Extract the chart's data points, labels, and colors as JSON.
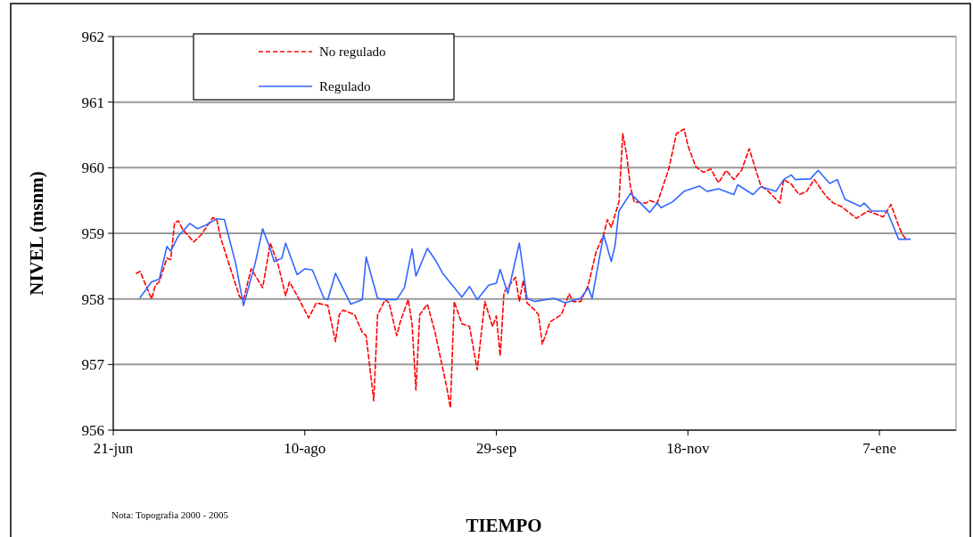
{
  "chart_data": {
    "type": "line",
    "xlabel": "TIEMPO",
    "ylabel": "NIVEL (msnm)",
    "annotations": [
      "Nota: Topografia 2000 - 2005"
    ],
    "xlim": [
      "2004-06-21",
      "2005-01-27"
    ],
    "xticks": [
      {
        "value": "2004-06-21",
        "label": "21-jun"
      },
      {
        "value": "2004-08-10",
        "label": "10-ago"
      },
      {
        "value": "2004-09-29",
        "label": "29-sep"
      },
      {
        "value": "2004-11-18",
        "label": "18-nov"
      },
      {
        "value": "2005-01-07",
        "label": "7-ene"
      }
    ],
    "ylim": [
      956,
      962
    ],
    "yticks": [
      956,
      957,
      958,
      959,
      960,
      961,
      962
    ],
    "grid": "y",
    "legend": "top left",
    "marker": "none",
    "series": [
      {
        "name": "No regulado",
        "color": "#ff0000",
        "line_style": "dashed",
        "x": [
          "2004-06-27",
          "2004-06-28",
          "2004-07-01",
          "2004-07-02",
          "2004-07-03",
          "2004-07-05",
          "2004-07-06",
          "2004-07-07",
          "2004-07-08",
          "2004-07-09",
          "2004-07-12",
          "2004-07-14",
          "2004-07-17",
          "2004-07-18",
          "2004-07-19",
          "2004-07-21",
          "2004-07-24",
          "2004-07-25",
          "2004-07-27",
          "2004-07-30",
          "2004-08-01",
          "2004-08-03",
          "2004-08-05",
          "2004-08-06",
          "2004-08-08",
          "2004-08-11",
          "2004-08-13",
          "2004-08-16",
          "2004-08-18",
          "2004-08-19",
          "2004-08-20",
          "2004-08-23",
          "2004-08-25",
          "2004-08-26",
          "2004-08-28",
          "2004-08-29",
          "2004-08-31",
          "2004-09-01",
          "2004-09-03",
          "2004-09-04",
          "2004-09-06",
          "2004-09-07",
          "2004-09-08",
          "2004-09-09",
          "2004-09-11",
          "2004-09-13",
          "2004-09-16",
          "2004-09-17",
          "2004-09-18",
          "2004-09-20",
          "2004-09-22",
          "2004-09-24",
          "2004-09-26",
          "2004-09-28",
          "2004-09-29",
          "2004-09-30",
          "2004-10-01",
          "2004-10-04",
          "2004-10-05",
          "2004-10-06",
          "2004-10-07",
          "2004-10-09",
          "2004-10-10",
          "2004-10-11",
          "2004-10-13",
          "2004-10-16",
          "2004-10-18",
          "2004-10-19",
          "2004-10-21",
          "2004-10-23",
          "2004-10-25",
          "2004-10-27",
          "2004-10-28",
          "2004-10-29",
          "2004-10-31",
          "2004-11-01",
          "2004-11-02",
          "2004-11-03",
          "2004-11-04",
          "2004-11-07",
          "2004-11-08",
          "2004-11-10",
          "2004-11-13",
          "2004-11-14",
          "2004-11-15",
          "2004-11-17",
          "2004-11-18",
          "2004-11-20",
          "2004-11-22",
          "2004-11-24",
          "2004-11-26",
          "2004-11-28",
          "2004-11-30",
          "2004-12-02",
          "2004-12-04",
          "2004-12-07",
          "2004-12-09",
          "2004-12-12",
          "2004-12-13",
          "2004-12-15",
          "2004-12-17",
          "2004-12-19",
          "2004-12-21",
          "2004-12-24",
          "2004-12-26",
          "2004-12-28",
          "2005-01-01",
          "2005-01-04",
          "2005-01-08",
          "2005-01-10",
          "2005-01-12",
          "2005-01-13",
          "2005-01-14"
        ],
        "values": [
          958.39,
          958.42,
          958.0,
          958.21,
          958.26,
          958.62,
          958.6,
          959.16,
          959.19,
          959.07,
          958.87,
          958.98,
          959.24,
          959.21,
          958.94,
          958.57,
          958.03,
          957.99,
          958.46,
          958.17,
          958.85,
          958.53,
          958.05,
          958.26,
          958.05,
          957.71,
          957.94,
          957.9,
          957.35,
          957.76,
          957.83,
          957.76,
          957.49,
          957.44,
          956.45,
          957.76,
          957.99,
          957.94,
          957.44,
          957.67,
          957.99,
          957.62,
          956.61,
          957.76,
          957.92,
          957.49,
          956.67,
          956.34,
          957.96,
          957.62,
          957.58,
          956.92,
          957.96,
          957.58,
          957.74,
          957.13,
          958.1,
          958.33,
          957.96,
          958.28,
          957.94,
          957.83,
          957.76,
          957.31,
          957.65,
          957.76,
          958.08,
          957.96,
          957.96,
          958.21,
          958.71,
          958.98,
          959.21,
          959.09,
          959.48,
          960.52,
          960.2,
          959.71,
          959.48,
          959.46,
          959.5,
          959.46,
          959.98,
          960.25,
          960.52,
          960.59,
          960.34,
          960.02,
          959.93,
          959.98,
          959.77,
          959.96,
          959.82,
          959.96,
          960.29,
          959.73,
          959.64,
          959.46,
          959.82,
          959.75,
          959.59,
          959.64,
          959.82,
          959.57,
          959.46,
          959.41,
          959.23,
          959.34,
          959.25,
          959.44,
          959.12,
          958.98,
          958.91
        ]
      },
      {
        "name": "Regulado",
        "color": "#3366ff",
        "line_style": "solid",
        "x": [
          "2004-06-28",
          "2004-07-01",
          "2004-07-03",
          "2004-07-05",
          "2004-07-06",
          "2004-07-08",
          "2004-07-11",
          "2004-07-13",
          "2004-07-15",
          "2004-07-18",
          "2004-07-20",
          "2004-07-23",
          "2004-07-25",
          "2004-07-28",
          "2004-07-30",
          "2004-08-01",
          "2004-08-02",
          "2004-08-04",
          "2004-08-05",
          "2004-08-08",
          "2004-08-10",
          "2004-08-12",
          "2004-08-15",
          "2004-08-16",
          "2004-08-18",
          "2004-08-22",
          "2004-08-25",
          "2004-08-26",
          "2004-08-29",
          "2004-08-31",
          "2004-09-03",
          "2004-09-05",
          "2004-09-07",
          "2004-09-08",
          "2004-09-11",
          "2004-09-13",
          "2004-09-15",
          "2004-09-20",
          "2004-09-22",
          "2004-09-24",
          "2004-09-27",
          "2004-09-29",
          "2004-09-30",
          "2004-10-02",
          "2004-10-05",
          "2004-10-06",
          "2004-10-07",
          "2004-10-09",
          "2004-10-14",
          "2004-10-17",
          "2004-10-21",
          "2004-10-23",
          "2004-10-24",
          "2004-10-27",
          "2004-10-29",
          "2004-10-30",
          "2004-10-31",
          "2004-11-03",
          "2004-11-08",
          "2004-11-10",
          "2004-11-11",
          "2004-11-14",
          "2004-11-17",
          "2004-11-21",
          "2004-11-23",
          "2004-11-26",
          "2004-11-30",
          "2004-12-01",
          "2004-12-05",
          "2004-12-07",
          "2004-12-11",
          "2004-12-13",
          "2004-12-15",
          "2004-12-16",
          "2004-12-20",
          "2004-12-22",
          "2004-12-25",
          "2004-12-27",
          "2004-12-29",
          "2005-01-02",
          "2005-01-03",
          "2005-01-05",
          "2005-01-09",
          "2005-01-12",
          "2005-01-15"
        ],
        "values": [
          958.02,
          958.26,
          958.3,
          958.8,
          958.73,
          958.96,
          959.15,
          959.07,
          959.12,
          959.22,
          959.21,
          958.53,
          957.9,
          958.53,
          959.07,
          958.76,
          958.57,
          958.62,
          958.85,
          958.37,
          958.46,
          958.44,
          958.01,
          957.99,
          958.39,
          957.92,
          957.99,
          958.64,
          958.01,
          957.99,
          957.99,
          958.17,
          958.76,
          958.35,
          958.77,
          958.6,
          958.39,
          958.03,
          958.19,
          957.99,
          958.21,
          958.24,
          958.45,
          958.08,
          958.85,
          958.44,
          958.01,
          957.96,
          958.01,
          957.94,
          958.01,
          958.17,
          958.01,
          958.98,
          958.57,
          958.82,
          959.34,
          959.61,
          959.32,
          959.46,
          959.39,
          959.48,
          959.64,
          959.72,
          959.64,
          959.68,
          959.59,
          959.74,
          959.59,
          959.71,
          959.64,
          959.82,
          959.89,
          959.82,
          959.83,
          959.96,
          959.76,
          959.82,
          959.52,
          959.41,
          959.46,
          959.34,
          959.34,
          958.91,
          958.91
        ]
      }
    ]
  }
}
